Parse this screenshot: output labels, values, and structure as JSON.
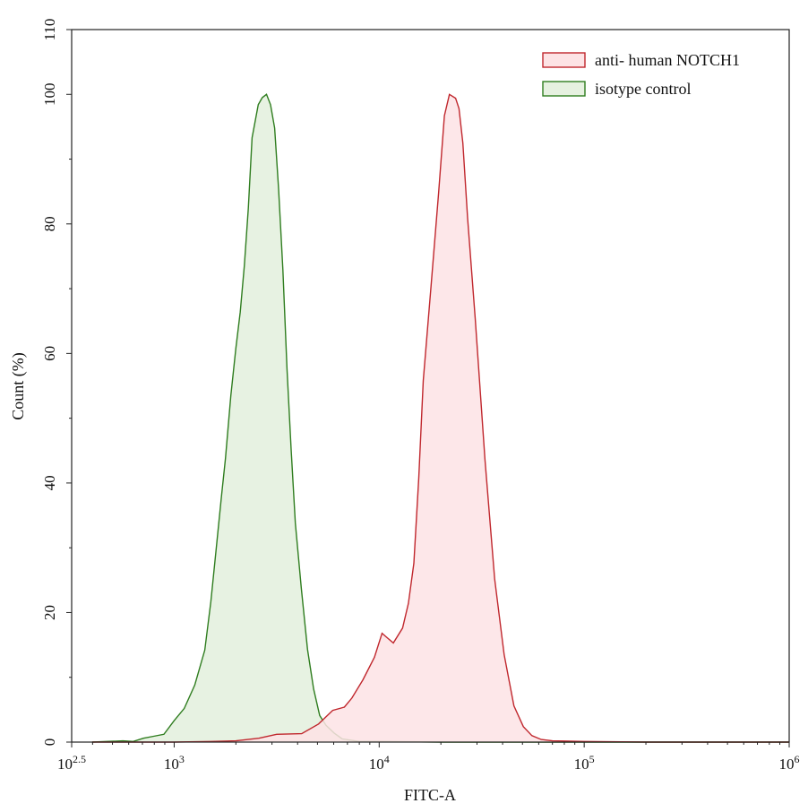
{
  "chart_data": {
    "type": "area",
    "title": "",
    "xlabel": "FITC-A",
    "ylabel": "Count  (%)",
    "x_scale": "log10",
    "xlim": [
      316.2,
      1000000
    ],
    "ylim": [
      0,
      110
    ],
    "x_ticks": [
      {
        "value": 316.2,
        "base": "10",
        "exp": "2.5"
      },
      {
        "value": 1000,
        "base": "10",
        "exp": "3"
      },
      {
        "value": 10000,
        "base": "10",
        "exp": "4"
      },
      {
        "value": 100000,
        "base": "10",
        "exp": "5"
      },
      {
        "value": 1000000,
        "base": "10",
        "exp": "6"
      }
    ],
    "y_ticks": [
      "0",
      "20",
      "40",
      "60",
      "80",
      "100",
      "110"
    ],
    "y_tick_values": [
      0,
      20,
      40,
      60,
      80,
      100,
      110
    ],
    "grid": false,
    "legend_position": "top-right",
    "series": [
      {
        "name": "anti- human NOTCH1",
        "stroke": "#c0272d",
        "fill": "#fde3e5",
        "x": [
          398,
          1000,
          1510,
          2000,
          2590,
          3160,
          4190,
          5060,
          5930,
          6760,
          7360,
          8330,
          9480,
          10330,
          10950,
          11720,
          13000,
          13880,
          14760,
          15600,
          16400,
          17900,
          19500,
          20800,
          22000,
          23600,
          24500,
          25600,
          27000,
          29400,
          32800,
          36600,
          40700,
          45400,
          50500,
          55600,
          61700,
          70000,
          100000,
          200000,
          1000000
        ],
        "y": [
          0,
          0,
          0.1,
          0.2,
          0.6,
          1.2,
          1.3,
          2.8,
          4.9,
          5.4,
          6.8,
          9.6,
          13.1,
          16.8,
          16.1,
          15.3,
          17.6,
          21.4,
          27.6,
          40.8,
          55.8,
          70.4,
          84.9,
          96.7,
          100,
          99.4,
          97.8,
          92.5,
          80.9,
          65.4,
          43.6,
          25.2,
          13.5,
          5.6,
          2.4,
          1.0,
          0.4,
          0.2,
          0.1,
          0,
          0
        ]
      },
      {
        "name": "isotype control",
        "stroke": "#2f7d1f",
        "fill": "#e6f1e0",
        "x": [
          398,
          562,
          631,
          708,
          794,
          891,
          1000,
          1120,
          1260,
          1410,
          1510,
          1600,
          1700,
          1780,
          1890,
          2000,
          2100,
          2200,
          2300,
          2400,
          2570,
          2690,
          2820,
          2950,
          3090,
          3230,
          3390,
          3550,
          3720,
          3900,
          4170,
          4470,
          4790,
          5130,
          5500,
          6030,
          6600,
          7240,
          8000,
          10000,
          20000,
          100000,
          1000000
        ],
        "y": [
          0,
          0.2,
          0.1,
          0.6,
          0.9,
          1.2,
          3.3,
          5.2,
          8.8,
          14.2,
          21.7,
          29.5,
          37.9,
          43.8,
          53.5,
          60.8,
          66.4,
          73.6,
          82.4,
          93.3,
          98.4,
          99.5,
          100,
          98.4,
          94.8,
          85.4,
          72.9,
          57.6,
          45.2,
          33.8,
          23.7,
          14.3,
          8.2,
          4.1,
          2.6,
          1.4,
          0.5,
          0.3,
          0.1,
          0.1,
          0,
          0,
          0
        ]
      }
    ]
  }
}
